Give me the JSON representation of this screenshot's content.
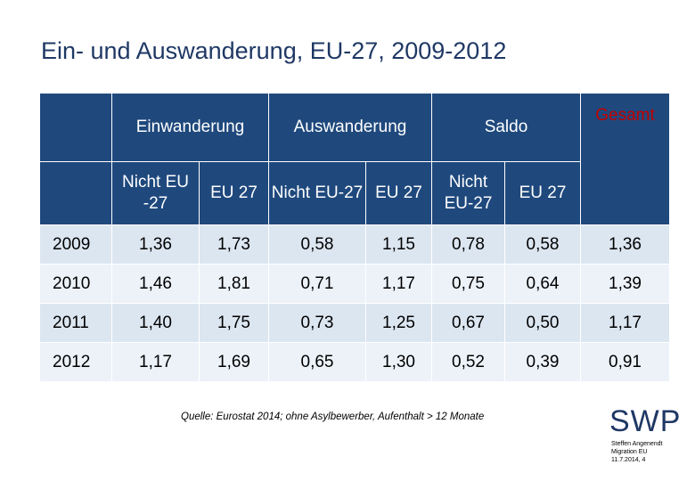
{
  "title": "Ein- und Auswanderung, EU-27, 2009-2012",
  "header_groups": [
    "Einwanderung",
    "Auswanderung",
    "Saldo",
    "Gesamt"
  ],
  "sub_headers": [
    "Nicht EU -27",
    "EU 27",
    "Nicht EU-27",
    "EU 27",
    "Nicht EU-27",
    "EU 27"
  ],
  "rows": [
    {
      "year": "2009",
      "values": [
        "1,36",
        "1,73",
        "0,58",
        "1,15",
        "0,78",
        "0,58"
      ],
      "total": "1,36"
    },
    {
      "year": "2010",
      "values": [
        "1,46",
        "1,81",
        "0,71",
        "1,17",
        "0,75",
        "0,64"
      ],
      "total": "1,39"
    },
    {
      "year": "2011",
      "values": [
        "1,40",
        "1,75",
        "0,73",
        "1,25",
        "0,67",
        "0,50"
      ],
      "total": "1,17"
    },
    {
      "year": "2012",
      "values": [
        "1,17",
        "1,69",
        "0,65",
        "1,30",
        "0,52",
        "0,39"
      ],
      "total": "0,91"
    }
  ],
  "source": "Quelle: Eurostat 2014; ohne Asylbewerber, Aufenthalt > 12 Monate",
  "logo": {
    "text": "SWP",
    "author": "Steffen Angenendt",
    "subject": "Migration EU",
    "date": "11.7.2014, 4"
  },
  "colors": {
    "header_bg": "#1f497d",
    "title": "#1f3864",
    "highlight": "#c00000",
    "row_odd": "#dce6f1",
    "row_even": "#edf2f9"
  }
}
